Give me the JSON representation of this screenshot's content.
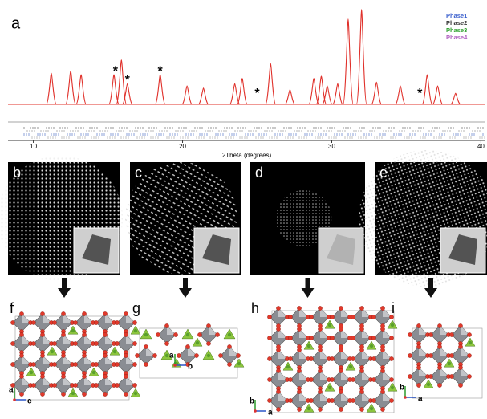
{
  "panel_a": {
    "label": "a",
    "xlabel": "2Theta (degrees)",
    "xlim": [
      8.3,
      40.3
    ],
    "xticks": [
      10,
      20,
      30,
      40
    ],
    "ylim": [
      0,
      130
    ],
    "curve_color": "#e0302a",
    "legend": [
      {
        "name": "Phase1",
        "color": "#3a5fcd"
      },
      {
        "name": "Phase2",
        "color": "#333333"
      },
      {
        "name": "Phase3",
        "color": "#2ca02c"
      },
      {
        "name": "Phase4",
        "color": "#b05fc0"
      }
    ],
    "peaks": {
      "x": [
        11.2,
        12.5,
        13.2,
        15.4,
        15.9,
        16.3,
        18.5,
        20.3,
        21.4,
        23.5,
        24.0,
        25.9,
        27.2,
        28.8,
        29.3,
        29.7,
        30.4,
        31.1,
        32.0,
        33.0,
        34.6,
        36.4,
        37.1,
        38.3
      ],
      "intensity": [
        42,
        45,
        40,
        40,
        60,
        28,
        40,
        25,
        22,
        28,
        35,
        55,
        20,
        35,
        38,
        25,
        28,
        115,
        128,
        30,
        25,
        40,
        25,
        15
      ]
    },
    "asterisk": "*",
    "asterisk_x": [
      15.5,
      16.3,
      18.5,
      25.0,
      35.9
    ]
  },
  "diffraction_panels": [
    {
      "label": "b"
    },
    {
      "label": "c"
    },
    {
      "label": "d"
    },
    {
      "label": "e"
    }
  ],
  "structure_panels": [
    {
      "label": "f",
      "axes": [
        "a",
        "c"
      ]
    },
    {
      "label": "g",
      "axes": [
        "a",
        "b"
      ]
    },
    {
      "label": "h",
      "axes": [
        "b",
        "a"
      ]
    },
    {
      "label": "i",
      "axes": [
        "b",
        "a"
      ]
    }
  ]
}
